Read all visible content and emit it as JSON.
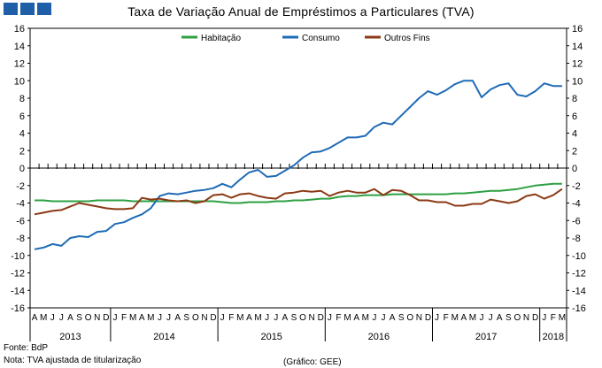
{
  "chart_data": {
    "type": "line",
    "title": "Taxa de Variação Anual de Empréstimos a Particulares (TVA)",
    "ylim": [
      -16,
      16
    ],
    "yticks": [
      16,
      14,
      12,
      10,
      8,
      6,
      4,
      2,
      0,
      -2,
      -4,
      -6,
      -8,
      -10,
      -12,
      -14,
      -16
    ],
    "month_labels": [
      "A",
      "M",
      "J",
      "J",
      "A",
      "S",
      "O",
      "N",
      "D",
      "J",
      "F",
      "M",
      "A",
      "M",
      "J",
      "J",
      "A",
      "S",
      "O",
      "N",
      "D",
      "J",
      "F",
      "M",
      "A",
      "M",
      "J",
      "J",
      "A",
      "S",
      "O",
      "N",
      "D",
      "J",
      "F",
      "M",
      "A",
      "M",
      "J",
      "J",
      "A",
      "S",
      "O",
      "N",
      "D",
      "J",
      "F",
      "M",
      "A",
      "M",
      "J",
      "J",
      "A",
      "S",
      "O",
      "N",
      "D",
      "J",
      "F",
      "M"
    ],
    "years": [
      {
        "label": "2013",
        "start": 0,
        "end": 8
      },
      {
        "label": "2014",
        "start": 9,
        "end": 20
      },
      {
        "label": "2015",
        "start": 21,
        "end": 32
      },
      {
        "label": "2016",
        "start": 33,
        "end": 44
      },
      {
        "label": "2017",
        "start": 45,
        "end": 56
      },
      {
        "label": "2018",
        "start": 57,
        "end": 59
      }
    ],
    "series": [
      {
        "name": "Habitação",
        "color": "#2ea043",
        "values": [
          -3.7,
          -3.7,
          -3.8,
          -3.8,
          -3.8,
          -3.8,
          -3.8,
          -3.7,
          -3.7,
          -3.7,
          -3.7,
          -3.8,
          -3.8,
          -3.8,
          -3.8,
          -3.8,
          -3.8,
          -3.8,
          -3.8,
          -3.8,
          -3.8,
          -3.9,
          -4.0,
          -4.0,
          -3.9,
          -3.9,
          -3.9,
          -3.8,
          -3.8,
          -3.7,
          -3.7,
          -3.6,
          -3.5,
          -3.5,
          -3.3,
          -3.2,
          -3.2,
          -3.1,
          -3.1,
          -3.1,
          -3.0,
          -3.0,
          -3.0,
          -3.0,
          -3.0,
          -3.0,
          -3.0,
          -2.9,
          -2.9,
          -2.8,
          -2.7,
          -2.6,
          -2.6,
          -2.5,
          -2.4,
          -2.2,
          -2.0,
          -1.9,
          -1.8,
          -1.8
        ]
      },
      {
        "name": "Consumo",
        "color": "#1f6bb5",
        "values": [
          -9.3,
          -9.1,
          -8.7,
          -8.9,
          -8.0,
          -7.8,
          -7.9,
          -7.3,
          -7.2,
          -6.4,
          -6.2,
          -5.7,
          -5.3,
          -4.6,
          -3.2,
          -2.9,
          -3.0,
          -2.8,
          -2.6,
          -2.5,
          -2.3,
          -1.8,
          -2.2,
          -1.3,
          -0.5,
          -0.2,
          -1.0,
          -0.9,
          -0.3,
          0.3,
          1.2,
          1.8,
          1.9,
          2.3,
          2.9,
          3.5,
          3.5,
          3.7,
          4.7,
          5.2,
          5.0,
          6.0,
          7.0,
          8.0,
          8.8,
          8.4,
          8.9,
          9.6,
          10.0,
          10.0,
          8.1,
          9.0,
          9.5,
          9.7,
          8.4,
          8.2,
          8.8,
          9.7,
          9.4,
          9.4
        ]
      },
      {
        "name": "Outros Fins",
        "color": "#8b3a14",
        "values": [
          -5.3,
          -5.1,
          -4.9,
          -4.8,
          -4.4,
          -4.0,
          -4.2,
          -4.4,
          -4.6,
          -4.7,
          -4.7,
          -4.6,
          -3.4,
          -3.6,
          -3.5,
          -3.7,
          -3.8,
          -3.7,
          -4.0,
          -3.8,
          -3.1,
          -3.0,
          -3.4,
          -3.0,
          -2.9,
          -3.2,
          -3.4,
          -3.5,
          -2.9,
          -2.8,
          -2.6,
          -2.7,
          -2.6,
          -3.2,
          -2.8,
          -2.6,
          -2.8,
          -2.8,
          -2.4,
          -3.1,
          -2.5,
          -2.6,
          -3.1,
          -3.7,
          -3.7,
          -3.9,
          -3.9,
          -4.3,
          -4.3,
          -4.1,
          -4.1,
          -3.6,
          -3.8,
          -4.0,
          -3.8,
          -3.2,
          -3.0,
          -3.5,
          -3.1,
          -2.4
        ]
      }
    ]
  },
  "footer": {
    "source": "Fonte: BdP",
    "note": "Nota: TVA ajustada de titularização",
    "credit": "(Gráfico: GEE)"
  }
}
